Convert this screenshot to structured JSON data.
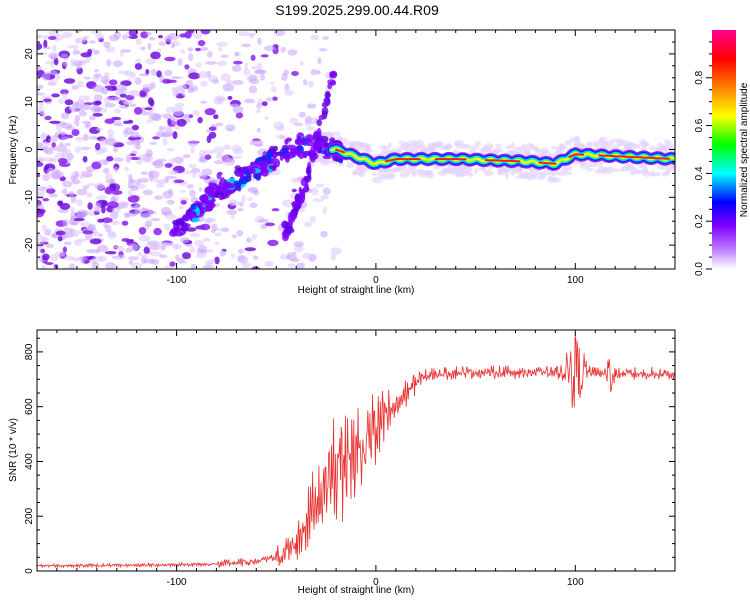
{
  "title": "S199.2025.299.00.44.R09",
  "chart_data": [
    {
      "type": "heatmap",
      "name": "spectrogram",
      "xlabel": "Height of straight line (km)",
      "ylabel": "Frequency (Hz)",
      "xlim": [
        -170,
        150
      ],
      "ylim": [
        -25,
        25
      ],
      "x_ticks": [
        -100,
        0,
        100
      ],
      "x_tick_labels": [
        "-100",
        "0",
        "100"
      ],
      "y_ticks": [
        -20,
        -10,
        0,
        10,
        20
      ],
      "y_tick_labels": [
        "-20",
        "-10",
        "0",
        "10",
        "20"
      ],
      "grid": false,
      "ridge": [
        {
          "x": -100,
          "f": -17
        },
        {
          "x": -80,
          "f": -9
        },
        {
          "x": -60,
          "f": -4
        },
        {
          "x": -40,
          "f": 1
        },
        {
          "x": -20,
          "f": 0
        },
        {
          "x": 0,
          "f": -3
        },
        {
          "x": 10,
          "f": -2
        },
        {
          "x": 40,
          "f": -2
        },
        {
          "x": 75,
          "f": -2.5
        },
        {
          "x": 90,
          "f": -3
        },
        {
          "x": 100,
          "f": -1
        },
        {
          "x": 150,
          "f": -2
        }
      ],
      "secondary_ridge": [
        {
          "x": -45,
          "f": -17
        },
        {
          "x": -35,
          "f": -7
        },
        {
          "x": -25,
          "f": 10
        },
        {
          "x": -22,
          "f": 15
        }
      ],
      "colorbar": {
        "label": "Normalized spectral amplitude",
        "range": [
          0,
          1
        ],
        "ticks": [
          0.0,
          0.2,
          0.4,
          0.6,
          0.8
        ],
        "tick_labels": [
          "0.0",
          "0.2",
          "0.4",
          "0.6",
          "0.8"
        ],
        "colors": [
          "#ffffff",
          "#8000ff",
          "#0000ff",
          "#00ffff",
          "#00ff00",
          "#ffff00",
          "#ff8000",
          "#ff0000",
          "#ff00a0"
        ]
      }
    },
    {
      "type": "line",
      "name": "snr",
      "xlabel": "Height of straight line (km)",
      "ylabel": "SNR (10 * v/v)",
      "xlim": [
        -170,
        150
      ],
      "ylim": [
        0,
        880
      ],
      "x_ticks": [
        -100,
        0,
        100
      ],
      "x_tick_labels": [
        "-100",
        "0",
        "100"
      ],
      "y_ticks": [
        0,
        200,
        400,
        600,
        800
      ],
      "y_tick_labels": [
        "0",
        "200",
        "400",
        "600",
        "800"
      ],
      "color": "#e83030",
      "grid": false,
      "series": [
        {
          "name": "SNR",
          "x": [
            -170,
            -140,
            -110,
            -80,
            -60,
            -50,
            -45,
            -40,
            -35,
            -30,
            -25,
            -20,
            -15,
            -10,
            -5,
            0,
            5,
            10,
            15,
            20,
            25,
            30,
            40,
            50,
            60,
            70,
            80,
            90,
            95,
            100,
            105,
            110,
            115,
            120,
            130,
            140,
            150
          ],
          "y": [
            20,
            20,
            22,
            25,
            35,
            50,
            70,
            100,
            180,
            260,
            330,
            380,
            400,
            430,
            470,
            510,
            560,
            600,
            650,
            690,
            710,
            720,
            725,
            725,
            725,
            725,
            725,
            725,
            730,
            730,
            730,
            725,
            720,
            720,
            720,
            720,
            720
          ]
        }
      ]
    }
  ]
}
